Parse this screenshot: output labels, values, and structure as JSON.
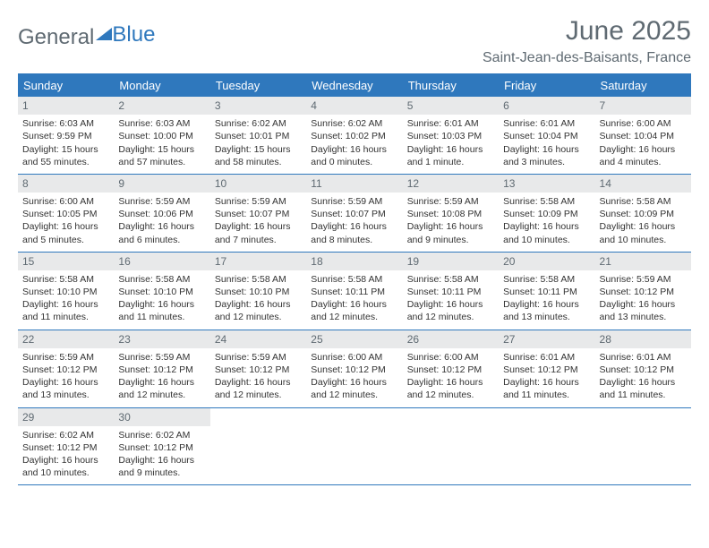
{
  "colors": {
    "brand_blue": "#2f78bd",
    "text_gray": "#5f6a72",
    "daynum_bg": "#e8e9ea",
    "body_text": "#333333",
    "background": "#ffffff"
  },
  "logo": {
    "part1": "General",
    "part2": "Blue"
  },
  "title": "June 2025",
  "location": "Saint-Jean-des-Baisants, France",
  "day_headers": [
    "Sunday",
    "Monday",
    "Tuesday",
    "Wednesday",
    "Thursday",
    "Friday",
    "Saturday"
  ],
  "layout": {
    "weeks": 5,
    "start_day_index": 0,
    "days_in_month": 30,
    "cell_font_size_pt": 8,
    "header_font_size_pt": 10
  },
  "days": [
    {
      "n": "1",
      "sunrise": "Sunrise: 6:03 AM",
      "sunset": "Sunset: 9:59 PM",
      "d1": "Daylight: 15 hours",
      "d2": "and 55 minutes."
    },
    {
      "n": "2",
      "sunrise": "Sunrise: 6:03 AM",
      "sunset": "Sunset: 10:00 PM",
      "d1": "Daylight: 15 hours",
      "d2": "and 57 minutes."
    },
    {
      "n": "3",
      "sunrise": "Sunrise: 6:02 AM",
      "sunset": "Sunset: 10:01 PM",
      "d1": "Daylight: 15 hours",
      "d2": "and 58 minutes."
    },
    {
      "n": "4",
      "sunrise": "Sunrise: 6:02 AM",
      "sunset": "Sunset: 10:02 PM",
      "d1": "Daylight: 16 hours",
      "d2": "and 0 minutes."
    },
    {
      "n": "5",
      "sunrise": "Sunrise: 6:01 AM",
      "sunset": "Sunset: 10:03 PM",
      "d1": "Daylight: 16 hours",
      "d2": "and 1 minute."
    },
    {
      "n": "6",
      "sunrise": "Sunrise: 6:01 AM",
      "sunset": "Sunset: 10:04 PM",
      "d1": "Daylight: 16 hours",
      "d2": "and 3 minutes."
    },
    {
      "n": "7",
      "sunrise": "Sunrise: 6:00 AM",
      "sunset": "Sunset: 10:04 PM",
      "d1": "Daylight: 16 hours",
      "d2": "and 4 minutes."
    },
    {
      "n": "8",
      "sunrise": "Sunrise: 6:00 AM",
      "sunset": "Sunset: 10:05 PM",
      "d1": "Daylight: 16 hours",
      "d2": "and 5 minutes."
    },
    {
      "n": "9",
      "sunrise": "Sunrise: 5:59 AM",
      "sunset": "Sunset: 10:06 PM",
      "d1": "Daylight: 16 hours",
      "d2": "and 6 minutes."
    },
    {
      "n": "10",
      "sunrise": "Sunrise: 5:59 AM",
      "sunset": "Sunset: 10:07 PM",
      "d1": "Daylight: 16 hours",
      "d2": "and 7 minutes."
    },
    {
      "n": "11",
      "sunrise": "Sunrise: 5:59 AM",
      "sunset": "Sunset: 10:07 PM",
      "d1": "Daylight: 16 hours",
      "d2": "and 8 minutes."
    },
    {
      "n": "12",
      "sunrise": "Sunrise: 5:59 AM",
      "sunset": "Sunset: 10:08 PM",
      "d1": "Daylight: 16 hours",
      "d2": "and 9 minutes."
    },
    {
      "n": "13",
      "sunrise": "Sunrise: 5:58 AM",
      "sunset": "Sunset: 10:09 PM",
      "d1": "Daylight: 16 hours",
      "d2": "and 10 minutes."
    },
    {
      "n": "14",
      "sunrise": "Sunrise: 5:58 AM",
      "sunset": "Sunset: 10:09 PM",
      "d1": "Daylight: 16 hours",
      "d2": "and 10 minutes."
    },
    {
      "n": "15",
      "sunrise": "Sunrise: 5:58 AM",
      "sunset": "Sunset: 10:10 PM",
      "d1": "Daylight: 16 hours",
      "d2": "and 11 minutes."
    },
    {
      "n": "16",
      "sunrise": "Sunrise: 5:58 AM",
      "sunset": "Sunset: 10:10 PM",
      "d1": "Daylight: 16 hours",
      "d2": "and 11 minutes."
    },
    {
      "n": "17",
      "sunrise": "Sunrise: 5:58 AM",
      "sunset": "Sunset: 10:10 PM",
      "d1": "Daylight: 16 hours",
      "d2": "and 12 minutes."
    },
    {
      "n": "18",
      "sunrise": "Sunrise: 5:58 AM",
      "sunset": "Sunset: 10:11 PM",
      "d1": "Daylight: 16 hours",
      "d2": "and 12 minutes."
    },
    {
      "n": "19",
      "sunrise": "Sunrise: 5:58 AM",
      "sunset": "Sunset: 10:11 PM",
      "d1": "Daylight: 16 hours",
      "d2": "and 12 minutes."
    },
    {
      "n": "20",
      "sunrise": "Sunrise: 5:58 AM",
      "sunset": "Sunset: 10:11 PM",
      "d1": "Daylight: 16 hours",
      "d2": "and 13 minutes."
    },
    {
      "n": "21",
      "sunrise": "Sunrise: 5:59 AM",
      "sunset": "Sunset: 10:12 PM",
      "d1": "Daylight: 16 hours",
      "d2": "and 13 minutes."
    },
    {
      "n": "22",
      "sunrise": "Sunrise: 5:59 AM",
      "sunset": "Sunset: 10:12 PM",
      "d1": "Daylight: 16 hours",
      "d2": "and 13 minutes."
    },
    {
      "n": "23",
      "sunrise": "Sunrise: 5:59 AM",
      "sunset": "Sunset: 10:12 PM",
      "d1": "Daylight: 16 hours",
      "d2": "and 12 minutes."
    },
    {
      "n": "24",
      "sunrise": "Sunrise: 5:59 AM",
      "sunset": "Sunset: 10:12 PM",
      "d1": "Daylight: 16 hours",
      "d2": "and 12 minutes."
    },
    {
      "n": "25",
      "sunrise": "Sunrise: 6:00 AM",
      "sunset": "Sunset: 10:12 PM",
      "d1": "Daylight: 16 hours",
      "d2": "and 12 minutes."
    },
    {
      "n": "26",
      "sunrise": "Sunrise: 6:00 AM",
      "sunset": "Sunset: 10:12 PM",
      "d1": "Daylight: 16 hours",
      "d2": "and 12 minutes."
    },
    {
      "n": "27",
      "sunrise": "Sunrise: 6:01 AM",
      "sunset": "Sunset: 10:12 PM",
      "d1": "Daylight: 16 hours",
      "d2": "and 11 minutes."
    },
    {
      "n": "28",
      "sunrise": "Sunrise: 6:01 AM",
      "sunset": "Sunset: 10:12 PM",
      "d1": "Daylight: 16 hours",
      "d2": "and 11 minutes."
    },
    {
      "n": "29",
      "sunrise": "Sunrise: 6:02 AM",
      "sunset": "Sunset: 10:12 PM",
      "d1": "Daylight: 16 hours",
      "d2": "and 10 minutes."
    },
    {
      "n": "30",
      "sunrise": "Sunrise: 6:02 AM",
      "sunset": "Sunset: 10:12 PM",
      "d1": "Daylight: 16 hours",
      "d2": "and 9 minutes."
    }
  ]
}
